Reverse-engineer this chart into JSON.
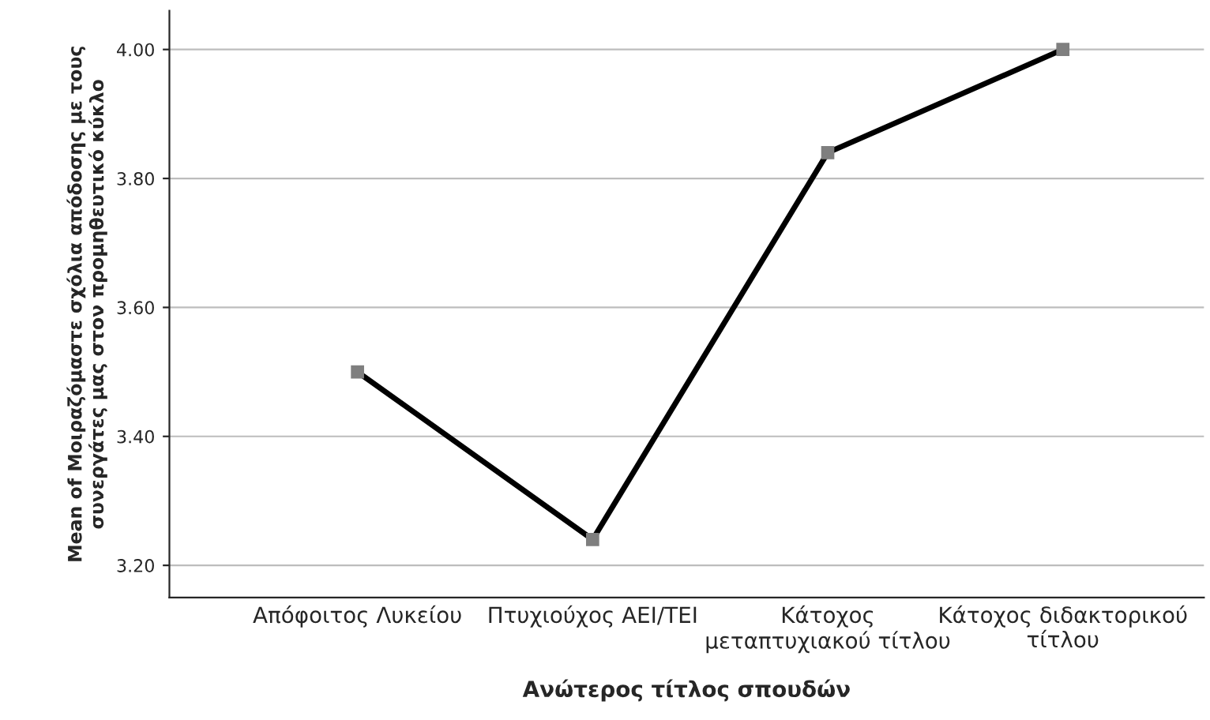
{
  "chart_data": {
    "type": "line",
    "xlabel": "Ανώτερος τίτλος σπουδών",
    "ylabel": "Mean of Μοιραζόμαστε σχόλια απόδοσης με τους\nσυνεργάτες μας στον προμηθευτικό κύκλο",
    "categories": [
      "Απόφοιτος Λυκείου",
      "Πτυχιούχος ΑΕΙ/ΤΕΙ",
      "Κάτοχος\nμεταπτυχιακού τίτλου",
      "Κάτοχος διδακτορικού\nτίτλου"
    ],
    "series": [
      {
        "color": "#000000",
        "values": [
          3.5,
          3.24,
          3.84,
          4.0
        ]
      }
    ],
    "ylim": [
      3.15,
      4.06
    ],
    "yticks": [
      {
        "value": 3.2,
        "label": "3.20"
      },
      {
        "value": 3.4,
        "label": "3.40"
      },
      {
        "value": 3.6,
        "label": "3.60"
      },
      {
        "value": 3.8,
        "label": "3.80"
      },
      {
        "value": 4.0,
        "label": "4.00"
      }
    ],
    "grid": "y",
    "marker": "square",
    "line_style": "solid"
  }
}
